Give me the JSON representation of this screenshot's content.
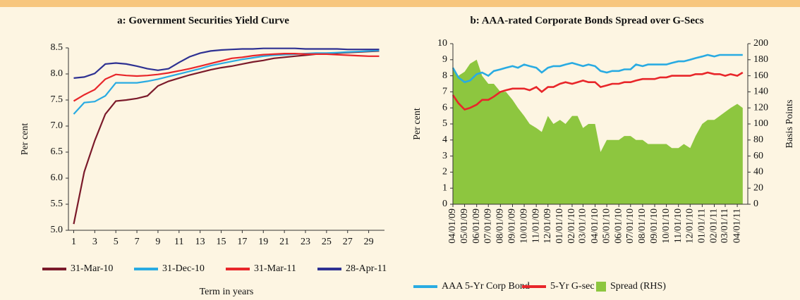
{
  "chart_data": [
    {
      "type": "line",
      "title": "a: Government Securities Yield Curve",
      "x_label": "Term in years",
      "y_label": "Per cent",
      "x": [
        1,
        2,
        3,
        4,
        5,
        6,
        7,
        8,
        9,
        10,
        11,
        12,
        13,
        14,
        15,
        16,
        17,
        18,
        19,
        20,
        21,
        22,
        23,
        24,
        25,
        26,
        27,
        28,
        29,
        30
      ],
      "xlim": [
        0.5,
        30.5
      ],
      "xticks": [
        1,
        3,
        5,
        7,
        9,
        11,
        13,
        15,
        17,
        19,
        21,
        23,
        25,
        27,
        29
      ],
      "ylim": [
        5,
        8.5
      ],
      "yticks": [
        {
          "value": 5,
          "label": "5.0"
        },
        5.5,
        {
          "value": 6,
          "label": "6.0"
        },
        6.5,
        {
          "value": 7,
          "label": "7.0"
        },
        7.5,
        {
          "value": 8,
          "label": "8.0"
        },
        8.5
      ],
      "grid": false,
      "series": [
        {
          "name": "31-Mar-10",
          "color": "#7b1a2a",
          "values": [
            5.12,
            6.12,
            6.72,
            7.23,
            7.48,
            7.5,
            7.53,
            7.58,
            7.77,
            7.86,
            7.92,
            7.98,
            8.03,
            8.08,
            8.12,
            8.15,
            8.19,
            8.23,
            8.26,
            8.3,
            8.32,
            8.34,
            8.36,
            8.38,
            8.39,
            8.4,
            8.41,
            8.42,
            8.43,
            8.44
          ]
        },
        {
          "name": "31-Dec-10",
          "color": "#29abe2",
          "values": [
            7.23,
            7.45,
            7.47,
            7.58,
            7.83,
            7.83,
            7.83,
            7.86,
            7.9,
            7.95,
            8.0,
            8.05,
            8.1,
            8.16,
            8.2,
            8.24,
            8.28,
            8.31,
            8.34,
            8.36,
            8.37,
            8.38,
            8.39,
            8.4,
            8.4,
            8.41,
            8.42,
            8.43,
            8.44,
            8.45
          ]
        },
        {
          "name": "31-Mar-11",
          "color": "#e8262a",
          "values": [
            7.48,
            7.6,
            7.7,
            7.9,
            7.99,
            7.97,
            7.96,
            7.97,
            7.99,
            8.02,
            8.06,
            8.1,
            8.15,
            8.2,
            8.25,
            8.3,
            8.32,
            8.35,
            8.37,
            8.38,
            8.39,
            8.39,
            8.38,
            8.38,
            8.38,
            8.37,
            8.36,
            8.35,
            8.34,
            8.34
          ]
        },
        {
          "name": "28-Apr-11",
          "color": "#2e3192",
          "values": [
            7.92,
            7.94,
            8.01,
            8.19,
            8.21,
            8.19,
            8.15,
            8.1,
            8.07,
            8.1,
            8.22,
            8.33,
            8.4,
            8.44,
            8.46,
            8.47,
            8.48,
            8.48,
            8.49,
            8.49,
            8.49,
            8.49,
            8.48,
            8.48,
            8.48,
            8.48,
            8.47,
            8.47,
            8.47,
            8.47
          ]
        }
      ]
    },
    {
      "type": "line",
      "title": "b: AAA-rated Corporate Bonds Spread over G-Secs",
      "y_label": "Per cent",
      "y2_label": "Basis Points",
      "x": [
        "04/01/09",
        "04/15/09",
        "05/01/09",
        "05/15/09",
        "06/01/09",
        "06/15/09",
        "07/01/09",
        "07/15/09",
        "08/01/09",
        "08/15/09",
        "09/01/09",
        "09/15/09",
        "10/01/09",
        "10/15/09",
        "11/01/09",
        "11/15/09",
        "12/01/09",
        "12/15/09",
        "01/01/10",
        "01/15/10",
        "02/01/10",
        "02/15/10",
        "03/01/10",
        "03/15/10",
        "04/01/10",
        "04/15/10",
        "05/01/10",
        "05/15/10",
        "06/01/10",
        "06/15/10",
        "07/01/10",
        "07/15/10",
        "08/01/10",
        "08/15/10",
        "09/01/10",
        "09/15/10",
        "10/01/10",
        "10/15/10",
        "11/01/10",
        "11/15/10",
        "12/01/10",
        "12/15/10",
        "01/01/11",
        "01/15/11",
        "02/01/11",
        "02/15/11",
        "03/01/11",
        "03/15/11",
        "04/01/11",
        "04/15/11"
      ],
      "xlim": [
        "04/01/09",
        "04/28/11"
      ],
      "xticks": [
        "04/01/09",
        "05/01/09",
        "06/01/09",
        "07/01/09",
        "08/01/09",
        "09/01/09",
        "10/01/09",
        "11/01/09",
        "12/01/09",
        "01/01/10",
        "02/01/10",
        "03/01/10",
        "04/01/10",
        "05/01/10",
        "06/01/10",
        "07/01/10",
        "08/01/10",
        "09/01/10",
        "10/01/10",
        "11/01/10",
        "12/01/10",
        "01/01/11",
        "02/01/11",
        "03/01/11",
        "04/01/11"
      ],
      "ylim": [
        0,
        10
      ],
      "yticks": [
        0,
        1,
        2,
        3,
        4,
        5,
        6,
        7,
        8,
        9,
        10
      ],
      "y2lim": [
        0,
        200
      ],
      "y2ticks": [
        0,
        20,
        40,
        60,
        80,
        100,
        120,
        140,
        160,
        180,
        200
      ],
      "grid": false,
      "series": [
        {
          "name": "Spread (RHS)",
          "color": "#8dc63f",
          "type": "area",
          "axis": "y2",
          "values": [
            170,
            160,
            165,
            175,
            180,
            160,
            150,
            150,
            140,
            140,
            130,
            120,
            110,
            100,
            95,
            90,
            110,
            100,
            105,
            100,
            110,
            110,
            95,
            100,
            100,
            65,
            80,
            80,
            80,
            85,
            85,
            80,
            80,
            75,
            75,
            75,
            75,
            70,
            70,
            75,
            70,
            85,
            100,
            105,
            105,
            110,
            115,
            120,
            125,
            120
          ]
        },
        {
          "name": "AAA 5-Yr Corp Bond",
          "color": "#29abe2",
          "values": [
            8.5,
            7.9,
            7.6,
            7.7,
            8.1,
            8.2,
            8.0,
            8.3,
            8.4,
            8.5,
            8.6,
            8.5,
            8.7,
            8.6,
            8.5,
            8.2,
            8.5,
            8.6,
            8.6,
            8.7,
            8.8,
            8.7,
            8.6,
            8.7,
            8.6,
            8.3,
            8.2,
            8.3,
            8.3,
            8.4,
            8.4,
            8.7,
            8.6,
            8.7,
            8.7,
            8.7,
            8.7,
            8.8,
            8.9,
            8.9,
            9.0,
            9.1,
            9.2,
            9.3,
            9.2,
            9.3,
            9.3,
            9.3,
            9.3,
            9.3
          ]
        },
        {
          "name": "5-Yr G-sec",
          "color": "#e8262a",
          "values": [
            6.8,
            6.3,
            5.9,
            6.0,
            6.2,
            6.5,
            6.5,
            6.7,
            7.0,
            7.1,
            7.2,
            7.2,
            7.2,
            7.1,
            7.3,
            7.0,
            7.3,
            7.3,
            7.5,
            7.6,
            7.5,
            7.6,
            7.7,
            7.6,
            7.6,
            7.3,
            7.4,
            7.5,
            7.5,
            7.6,
            7.6,
            7.7,
            7.8,
            7.8,
            7.8,
            7.9,
            7.9,
            8.0,
            8.0,
            8.0,
            8.0,
            8.1,
            8.1,
            8.2,
            8.1,
            8.1,
            8.0,
            8.1,
            8.0,
            8.2
          ]
        }
      ],
      "legend_order": [
        1,
        2,
        0
      ]
    }
  ]
}
